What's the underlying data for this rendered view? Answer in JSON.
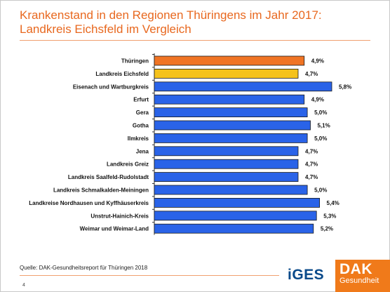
{
  "title": "Krankenstand in den Regionen Thüringens im Jahr 2017: Landkreis Eichsfeld im Vergleich",
  "source": "Quelle: DAK-Gesundheitsreport für Thüringen 2018",
  "page_number": "4",
  "logos": {
    "iges": "iGES",
    "dak": "DAK",
    "dak_sub": "Gesundheit"
  },
  "colors": {
    "accent": "#e8681f",
    "bar_default": "#2a63e8",
    "bar_state": "#f07424",
    "bar_highlight": "#f5c21c"
  },
  "chart_data": {
    "type": "bar",
    "orientation": "horizontal",
    "title": "Krankenstand in den Regionen Thüringens im Jahr 2017: Landkreis Eichsfeld im Vergleich",
    "categories": [
      "Thüringen",
      "Landkreis Eichsfeld",
      "Eisenach und Wartburgkreis",
      "Erfurt",
      "Gera",
      "Gotha",
      "Ilmkreis",
      "Jena",
      "Landkreis Greiz",
      "Landkreis Saalfeld-Rudolstadt",
      "Landkreis Schmalkalden-Meiningen",
      "Landkreise Nordhausen und Kyffhäuserkreis",
      "Unstrut-Hainich-Kreis",
      "Weimar und Weimar-Land"
    ],
    "values": [
      4.9,
      4.7,
      5.8,
      4.9,
      5.0,
      5.1,
      5.0,
      4.7,
      4.7,
      4.7,
      5.0,
      5.4,
      5.3,
      5.2
    ],
    "value_labels": [
      "4,9%",
      "4,7%",
      "5,8%",
      "4,9%",
      "5,0%",
      "5,1%",
      "5,0%",
      "4,7%",
      "4,7%",
      "4,7%",
      "5,0%",
      "5,4%",
      "5,3%",
      "5,2%"
    ],
    "bar_roles": [
      "state",
      "highlight",
      "default",
      "default",
      "default",
      "default",
      "default",
      "default",
      "default",
      "default",
      "default",
      "default",
      "default",
      "default"
    ],
    "unit": "%",
    "xlabel": "",
    "ylabel": "",
    "xlim": [
      0,
      5.8
    ],
    "grid": false,
    "legend": "none"
  }
}
